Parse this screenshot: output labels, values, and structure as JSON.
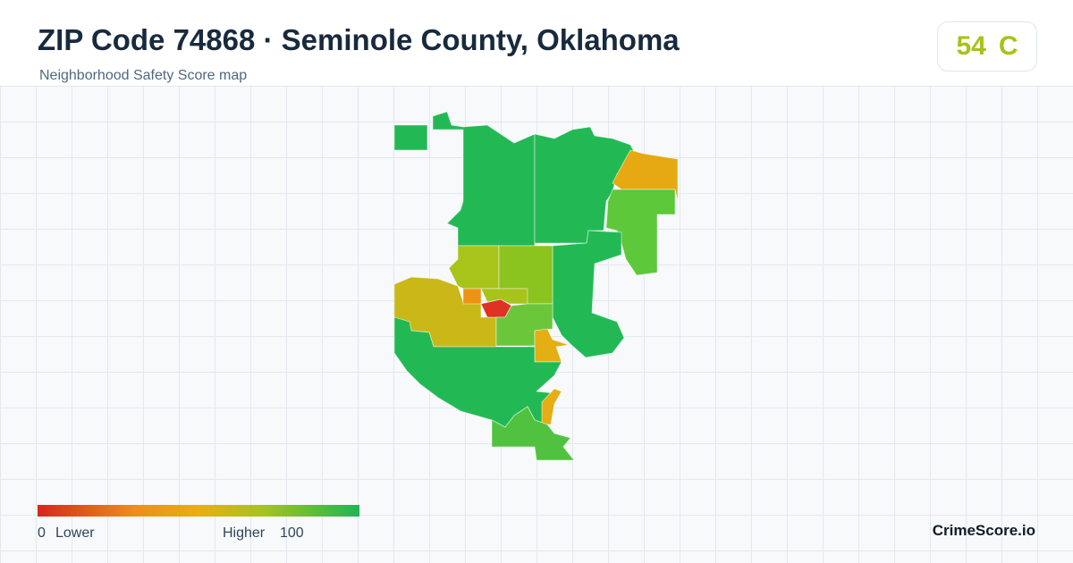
{
  "header": {
    "title": "ZIP Code 74868 · Seminole County, Oklahoma",
    "subtitle": "Neighborhood Safety Score map"
  },
  "score": {
    "value": 54,
    "grade": "C"
  },
  "legend": {
    "min": 0,
    "min_label": "Lower",
    "max_label": "Higher",
    "max": 100
  },
  "brand": "CrimeScore.io"
}
